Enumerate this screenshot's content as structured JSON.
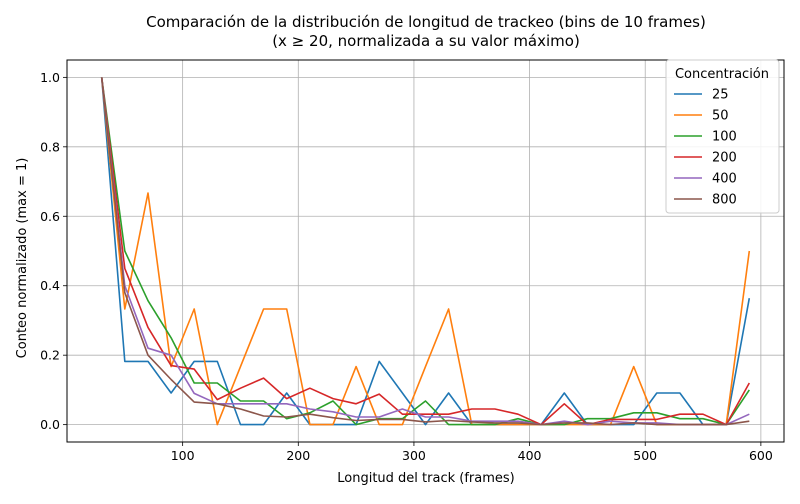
{
  "chart_data": {
    "type": "line",
    "title": "Comparación de la distribución de longitud de trackeo (bins de 10 frames)",
    "subtitle": "(x ≥ 20, normalizada a su valor máximo)",
    "xlabel": "Longitud del track (frames)",
    "ylabel": "Conteo normalizado (max = 1)",
    "xlim": [
      0,
      620
    ],
    "ylim": [
      -0.05,
      1.05
    ],
    "xticks": [
      100,
      200,
      300,
      400,
      500,
      600
    ],
    "yticks": [
      0.0,
      0.2,
      0.4,
      0.6,
      0.8,
      1.0
    ],
    "xtick_labels": [
      "100",
      "200",
      "300",
      "400",
      "500",
      "600"
    ],
    "ytick_labels": [
      "0.0",
      "0.2",
      "0.4",
      "0.6",
      "0.8",
      "1.0"
    ],
    "grid": true,
    "legend": {
      "title": "Concentración",
      "placement": "top-right"
    },
    "x": [
      30,
      50,
      70,
      90,
      110,
      130,
      150,
      170,
      190,
      210,
      230,
      250,
      270,
      290,
      310,
      330,
      350,
      370,
      390,
      410,
      430,
      450,
      470,
      490,
      510,
      530,
      550,
      570,
      590
    ],
    "series": [
      {
        "name": "25",
        "color": "#1f77b4",
        "values": [
          1.0,
          0.182,
          0.182,
          0.091,
          0.182,
          0.182,
          0.0,
          0.0,
          0.091,
          0.0,
          0.0,
          0.0,
          0.182,
          0.091,
          0.0,
          0.091,
          0.0,
          0.0,
          0.0,
          0.0,
          0.091,
          0.0,
          0.0,
          0.0,
          0.091,
          0.091,
          0.0,
          0.0,
          0.364
        ]
      },
      {
        "name": "50",
        "color": "#ff7f0e",
        "values": [
          1.0,
          0.333,
          0.667,
          0.167,
          0.333,
          0.0,
          0.167,
          0.333,
          0.333,
          0.0,
          0.0,
          0.167,
          0.0,
          0.0,
          0.167,
          0.333,
          0.0,
          0.0,
          0.0,
          0.0,
          0.0,
          0.0,
          0.0,
          0.167,
          0.0,
          0.0,
          0.0,
          0.0,
          0.5
        ]
      },
      {
        "name": "100",
        "color": "#2ca02c",
        "values": [
          1.0,
          0.5,
          0.357,
          0.25,
          0.12,
          0.12,
          0.068,
          0.068,
          0.017,
          0.034,
          0.068,
          0.0,
          0.017,
          0.017,
          0.068,
          0.0,
          0.0,
          0.0,
          0.017,
          0.0,
          0.0,
          0.017,
          0.017,
          0.034,
          0.034,
          0.017,
          0.017,
          0.0,
          0.1
        ]
      },
      {
        "name": "200",
        "color": "#d62728",
        "values": [
          1.0,
          0.45,
          0.28,
          0.17,
          0.16,
          0.072,
          0.105,
          0.134,
          0.075,
          0.105,
          0.075,
          0.06,
          0.088,
          0.03,
          0.03,
          0.03,
          0.045,
          0.045,
          0.03,
          0.0,
          0.06,
          0.0,
          0.015,
          0.015,
          0.015,
          0.03,
          0.03,
          0.0,
          0.12
        ]
      },
      {
        "name": "400",
        "color": "#9467bd",
        "values": [
          1.0,
          0.4,
          0.22,
          0.2,
          0.09,
          0.06,
          0.06,
          0.06,
          0.06,
          0.045,
          0.037,
          0.022,
          0.022,
          0.045,
          0.022,
          0.022,
          0.01,
          0.01,
          0.01,
          0.0,
          0.01,
          0.0,
          0.01,
          0.005,
          0.005,
          0.0,
          0.0,
          0.0,
          0.03
        ]
      },
      {
        "name": "800",
        "color": "#8c564b",
        "values": [
          1.0,
          0.38,
          0.2,
          0.13,
          0.065,
          0.06,
          0.045,
          0.025,
          0.022,
          0.03,
          0.02,
          0.012,
          0.015,
          0.015,
          0.008,
          0.012,
          0.008,
          0.005,
          0.005,
          0.0,
          0.005,
          0.005,
          0.0,
          0.005,
          0.0,
          0.0,
          0.0,
          0.0,
          0.01
        ]
      }
    ]
  }
}
